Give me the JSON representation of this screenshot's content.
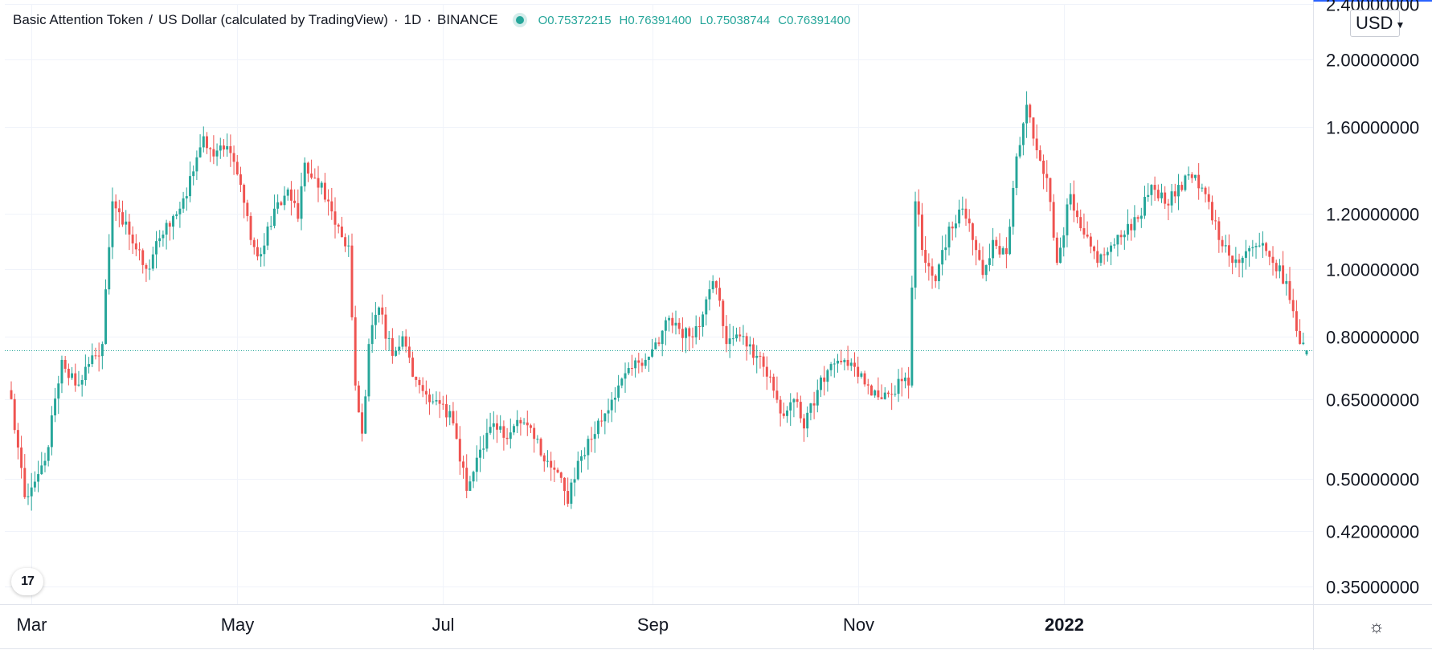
{
  "header": {
    "symbol_name": "Basic Attention Token",
    "separator": "/",
    "quote_name": "US Dollar (calculated by TradingView)",
    "interval": "1D",
    "exchange": "BINANCE",
    "ohlc": {
      "open_label": "O",
      "open": "0.75372215",
      "high_label": "H",
      "high": "0.76391400",
      "low_label": "L",
      "low": "0.75038744",
      "close_label": "C",
      "close": "0.76391400"
    }
  },
  "currency_button": {
    "label": "USD",
    "chevron": "chevron-down-icon"
  },
  "logo": {
    "text": "17",
    "icon": "tradingview-logo-icon"
  },
  "settings": {
    "icon": "gear-icon",
    "glyph": "☼"
  },
  "colors": {
    "up": "#26a69a",
    "down": "#ef5350",
    "grid": "#f0f3fa",
    "axis_text": "#131722",
    "price_line": "#26a69a"
  },
  "chart_data": {
    "type": "candlestick",
    "title": "Basic Attention Token / US Dollar (calculated by TradingView) · 1D · BINANCE",
    "y_scale": "log",
    "ylim": [
      0.33,
      2.4
    ],
    "y_ticks": [
      "2.40000000",
      "2.00000000",
      "1.60000000",
      "1.20000000",
      "1.00000000",
      "0.80000000",
      "0.65000000",
      "0.50000000",
      "0.42000000",
      "0.35000000"
    ],
    "y_tick_values": [
      2.4,
      2.0,
      1.6,
      1.2,
      1.0,
      0.8,
      0.65,
      0.5,
      0.42,
      0.35
    ],
    "x_ticks": [
      "Mar",
      "May",
      "Jul",
      "Sep",
      "Nov",
      "2022"
    ],
    "x_tick_dates": [
      "2021-03-01",
      "2021-05-01",
      "2021-07-01",
      "2021-09-01",
      "2021-11-01",
      "2022-01-01"
    ],
    "x_range": [
      "2021-02-23",
      "2022-03-14"
    ],
    "last_price": 0.763914,
    "grid": true,
    "close_path": [
      [
        "2021-02-23",
        0.65
      ],
      [
        "2021-02-27",
        0.47
      ],
      [
        "2021-03-05",
        0.53
      ],
      [
        "2021-03-10",
        0.74
      ],
      [
        "2021-03-14",
        0.68
      ],
      [
        "2021-03-18",
        0.73
      ],
      [
        "2021-03-22",
        0.78
      ],
      [
        "2021-03-25",
        1.25
      ],
      [
        "2021-03-30",
        1.12
      ],
      [
        "2021-04-04",
        1.0
      ],
      [
        "2021-04-09",
        1.12
      ],
      [
        "2021-04-14",
        1.22
      ],
      [
        "2021-04-18",
        1.38
      ],
      [
        "2021-04-21",
        1.55
      ],
      [
        "2021-04-24",
        1.45
      ],
      [
        "2021-04-28",
        1.5
      ],
      [
        "2021-05-02",
        1.32
      ],
      [
        "2021-05-05",
        1.1
      ],
      [
        "2021-05-08",
        1.05
      ],
      [
        "2021-05-12",
        1.22
      ],
      [
        "2021-05-16",
        1.3
      ],
      [
        "2021-05-19",
        1.18
      ],
      [
        "2021-05-21",
        1.42
      ],
      [
        "2021-05-24",
        1.35
      ],
      [
        "2021-05-28",
        1.25
      ],
      [
        "2021-05-31",
        1.15
      ],
      [
        "2021-06-03",
        1.08
      ],
      [
        "2021-06-05",
        0.68
      ],
      [
        "2021-06-07",
        0.58
      ],
      [
        "2021-06-09",
        0.78
      ],
      [
        "2021-06-12",
        0.88
      ],
      [
        "2021-06-16",
        0.75
      ],
      [
        "2021-06-19",
        0.8
      ],
      [
        "2021-06-22",
        0.7
      ],
      [
        "2021-06-26",
        0.66
      ],
      [
        "2021-06-30",
        0.64
      ],
      [
        "2021-07-04",
        0.6
      ],
      [
        "2021-07-08",
        0.48
      ],
      [
        "2021-07-12",
        0.55
      ],
      [
        "2021-07-16",
        0.6
      ],
      [
        "2021-07-20",
        0.57
      ],
      [
        "2021-07-24",
        0.6
      ],
      [
        "2021-07-28",
        0.57
      ],
      [
        "2021-08-01",
        0.53
      ],
      [
        "2021-08-04",
        0.51
      ],
      [
        "2021-08-07",
        0.46
      ],
      [
        "2021-08-10",
        0.53
      ],
      [
        "2021-08-14",
        0.57
      ],
      [
        "2021-08-18",
        0.62
      ],
      [
        "2021-08-22",
        0.68
      ],
      [
        "2021-08-26",
        0.72
      ],
      [
        "2021-08-30",
        0.74
      ],
      [
        "2021-09-03",
        0.78
      ],
      [
        "2021-09-06",
        0.85
      ],
      [
        "2021-09-09",
        0.82
      ],
      [
        "2021-09-12",
        0.8
      ],
      [
        "2021-09-16",
        0.86
      ],
      [
        "2021-09-19",
        0.96
      ],
      [
        "2021-09-21",
        0.9
      ],
      [
        "2021-09-23",
        0.78
      ],
      [
        "2021-09-27",
        0.8
      ],
      [
        "2021-10-02",
        0.75
      ],
      [
        "2021-10-06",
        0.7
      ],
      [
        "2021-10-09",
        0.62
      ],
      [
        "2021-10-13",
        0.65
      ],
      [
        "2021-10-16",
        0.59
      ],
      [
        "2021-10-20",
        0.67
      ],
      [
        "2021-10-24",
        0.73
      ],
      [
        "2021-10-28",
        0.74
      ],
      [
        "2021-11-01",
        0.7
      ],
      [
        "2021-11-04",
        0.68
      ],
      [
        "2021-11-08",
        0.65
      ],
      [
        "2021-11-11",
        0.66
      ],
      [
        "2021-11-14",
        0.69
      ],
      [
        "2021-11-16",
        0.68
      ],
      [
        "2021-11-17",
        0.94
      ],
      [
        "2021-11-18",
        1.25
      ],
      [
        "2021-11-21",
        1.02
      ],
      [
        "2021-11-24",
        0.96
      ],
      [
        "2021-11-28",
        1.15
      ],
      [
        "2021-12-02",
        1.22
      ],
      [
        "2021-12-05",
        1.1
      ],
      [
        "2021-12-08",
        0.98
      ],
      [
        "2021-12-11",
        1.1
      ],
      [
        "2021-12-15",
        1.05
      ],
      [
        "2021-12-18",
        1.45
      ],
      [
        "2021-12-21",
        1.72
      ],
      [
        "2021-12-24",
        1.48
      ],
      [
        "2021-12-27",
        1.35
      ],
      [
        "2021-12-30",
        1.02
      ],
      [
        "2022-01-03",
        1.28
      ],
      [
        "2022-01-07",
        1.12
      ],
      [
        "2022-01-11",
        1.02
      ],
      [
        "2022-01-15",
        1.08
      ],
      [
        "2022-01-19",
        1.12
      ],
      [
        "2022-01-23",
        1.18
      ],
      [
        "2022-01-27",
        1.32
      ],
      [
        "2022-01-31",
        1.24
      ],
      [
        "2022-02-04",
        1.32
      ],
      [
        "2022-02-08",
        1.35
      ],
      [
        "2022-02-12",
        1.28
      ],
      [
        "2022-02-16",
        1.1
      ],
      [
        "2022-02-20",
        1.02
      ],
      [
        "2022-02-24",
        1.06
      ],
      [
        "2022-02-28",
        1.08
      ],
      [
        "2022-03-04",
        1.02
      ],
      [
        "2022-03-08",
        0.96
      ],
      [
        "2022-03-12",
        0.78
      ],
      [
        "2022-03-14",
        0.7639
      ]
    ]
  }
}
